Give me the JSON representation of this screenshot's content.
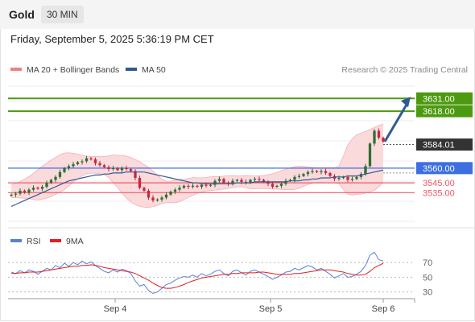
{
  "header": {
    "title": "Gold",
    "timeframe": "30 MIN"
  },
  "datetime": "Friday, September 5, 2025 5:36:19 PM CET",
  "legend": {
    "items": [
      {
        "label": "MA 20 + Bollinger Bands",
        "color": "#f08080"
      },
      {
        "label": "MA 50",
        "color": "#2e5a94"
      }
    ],
    "attribution": "Research © 2025 Trading Central"
  },
  "rsi_legend": {
    "items": [
      {
        "label": "RSI",
        "color": "#5b7fd6"
      },
      {
        "label": "9MA",
        "color": "#e02020"
      }
    ]
  },
  "colors": {
    "resistance": "#4c9a0f",
    "pivot": "#3d6fe0",
    "support": "#ee5a6a",
    "current": "#333333",
    "arrow": "#2e5a94",
    "up_candle": "#2f6e34",
    "down_candle": "#c8283c"
  },
  "chart_data": [
    {
      "type": "candlestick",
      "ylim": [
        3500,
        3655
      ],
      "x_ticks": [
        "Sep 4",
        "Sep 5",
        "Sep 6"
      ],
      "levels": [
        {
          "value": 3631.0,
          "label": "3631.00",
          "kind": "resistance",
          "tag": "filled"
        },
        {
          "value": 3618.0,
          "label": "3618.00",
          "kind": "resistance",
          "tag": "filled"
        },
        {
          "value": 3584.01,
          "label": "3584.01",
          "kind": "current",
          "tag": "filled"
        },
        {
          "value": 3560.0,
          "label": "3560.00",
          "kind": "pivot",
          "tag": "filled"
        },
        {
          "value": 3545.0,
          "label": "3545.00",
          "kind": "support",
          "tag": "text"
        },
        {
          "value": 3535.0,
          "label": "3535.00",
          "kind": "support",
          "tag": "text"
        }
      ],
      "projection_target": 3631.0,
      "close": [
        3533,
        3534,
        3537,
        3535,
        3538,
        3540,
        3539,
        3541,
        3545,
        3548,
        3551,
        3556,
        3560,
        3562,
        3564,
        3566,
        3567,
        3570,
        3569,
        3565,
        3563,
        3561,
        3559,
        3560,
        3558,
        3560,
        3559,
        3557,
        3550,
        3540,
        3537,
        3530,
        3527,
        3528,
        3530,
        3533,
        3536,
        3538,
        3540,
        3542,
        3541,
        3542,
        3541,
        3543,
        3542,
        3543,
        3547,
        3549,
        3545,
        3544,
        3547,
        3548,
        3546,
        3545,
        3548,
        3549,
        3548,
        3546,
        3544,
        3541,
        3542,
        3544,
        3547,
        3548,
        3551,
        3552,
        3554,
        3556,
        3557,
        3556,
        3557,
        3555,
        3552,
        3549,
        3550,
        3551,
        3548,
        3549,
        3551,
        3554,
        3562,
        3585,
        3598,
        3591,
        3587
      ],
      "ma50": [
        3521,
        3523,
        3525,
        3527,
        3529,
        3531,
        3533,
        3535,
        3537,
        3539,
        3541,
        3543,
        3545,
        3547,
        3548,
        3549,
        3550,
        3551,
        3552,
        3553,
        3553,
        3554,
        3554,
        3555,
        3555,
        3555,
        3556,
        3556,
        3556,
        3556,
        3556,
        3555,
        3554,
        3553,
        3552,
        3551,
        3550,
        3549,
        3548,
        3547,
        3546,
        3545,
        3545,
        3544,
        3544,
        3544,
        3544,
        3544,
        3544,
        3544,
        3544,
        3545,
        3545,
        3545,
        3545,
        3546,
        3546,
        3546,
        3546,
        3546,
        3546,
        3546,
        3546,
        3547,
        3547,
        3547,
        3548,
        3548,
        3549,
        3549,
        3550,
        3550,
        3550,
        3551,
        3551,
        3551,
        3552,
        3552,
        3552,
        3553,
        3554,
        3555,
        3556,
        3557,
        3558
      ],
      "rsi": [
        57,
        55,
        59,
        56,
        60,
        58,
        54,
        58,
        62,
        60,
        66,
        63,
        69,
        65,
        70,
        67,
        72,
        68,
        71,
        66,
        62,
        58,
        56,
        60,
        57,
        61,
        59,
        55,
        45,
        38,
        40,
        32,
        28,
        30,
        35,
        40,
        42,
        46,
        49,
        51,
        50,
        53,
        50,
        55,
        52,
        54,
        58,
        60,
        55,
        52,
        58,
        60,
        56,
        53,
        58,
        60,
        57,
        54,
        51,
        47,
        50,
        53,
        57,
        58,
        62,
        60,
        63,
        66,
        64,
        60,
        62,
        58,
        54,
        49,
        52,
        55,
        50,
        51,
        54,
        58,
        66,
        80,
        84,
        74,
        72
      ],
      "rsi_ma9": [
        55,
        55,
        56,
        56,
        57,
        57,
        57,
        58,
        59,
        60,
        61,
        62,
        63,
        64,
        65,
        65,
        66,
        66,
        67,
        66,
        65,
        63,
        62,
        61,
        60,
        59,
        58,
        57,
        55,
        52,
        49,
        46,
        42,
        39,
        36,
        35,
        35,
        36,
        38,
        40,
        43,
        45,
        47,
        49,
        50,
        51,
        52,
        53,
        54,
        54,
        55,
        55,
        56,
        56,
        56,
        56,
        57,
        57,
        56,
        55,
        54,
        54,
        54,
        54,
        55,
        55,
        56,
        57,
        58,
        59,
        60,
        60,
        60,
        59,
        58,
        57,
        55,
        54,
        53,
        53,
        54,
        58,
        63,
        66,
        69
      ],
      "rsi_ticks": [
        70,
        50,
        30
      ],
      "rsi_ylim": [
        22,
        92
      ]
    }
  ]
}
